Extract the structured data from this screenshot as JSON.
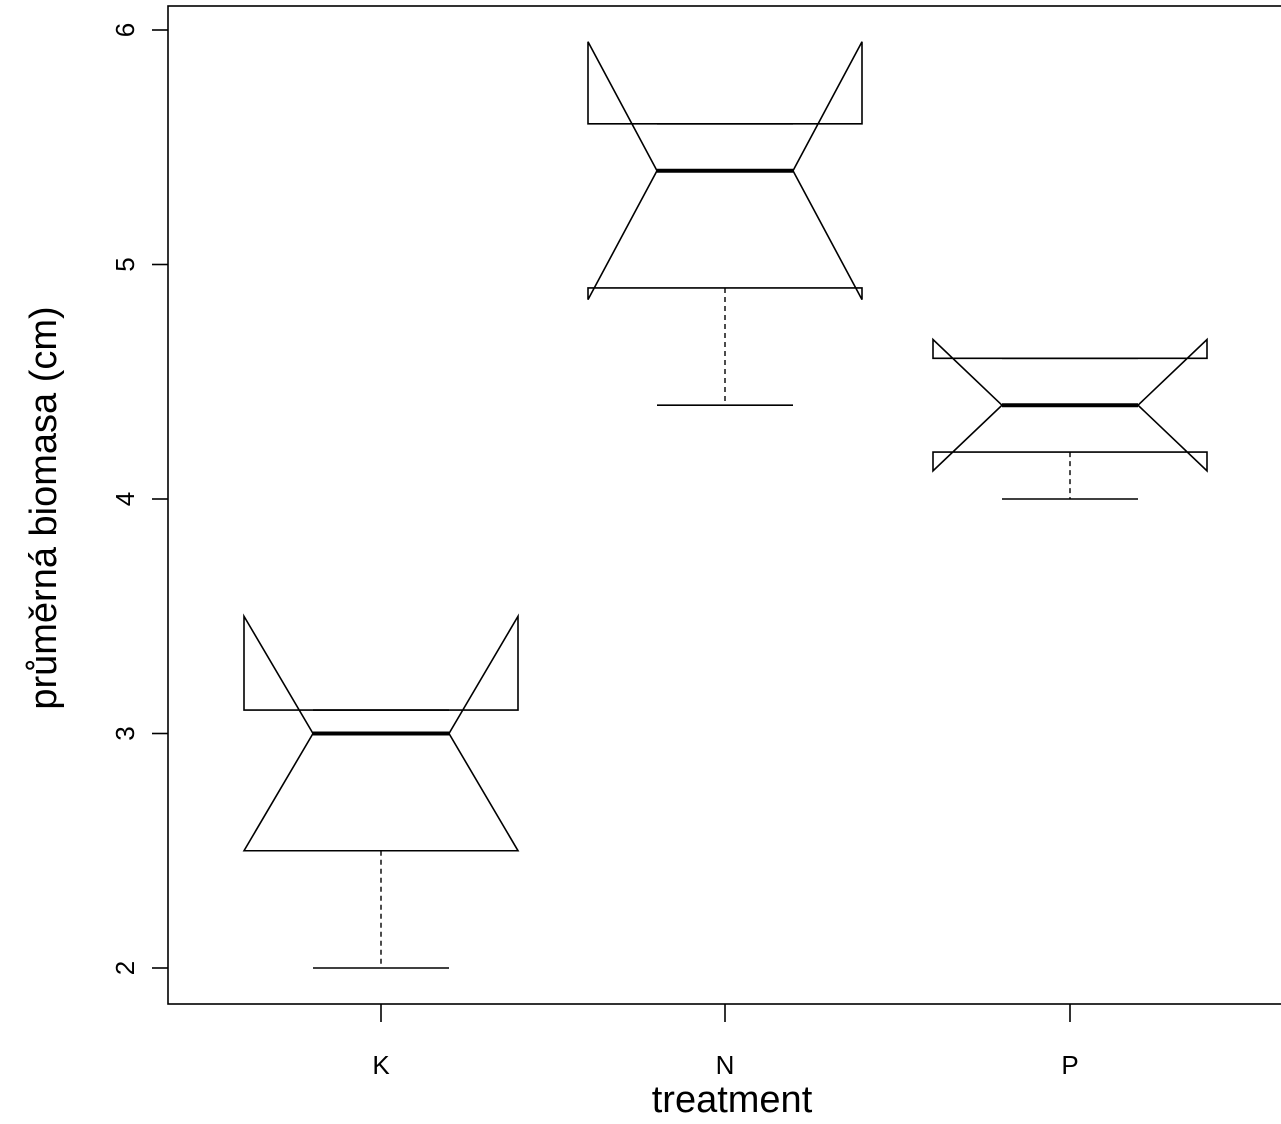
{
  "chart_data": {
    "type": "box",
    "notch": true,
    "xlabel": "treatment",
    "ylabel": "průměrná biomasa (cm)",
    "categories": [
      "K",
      "N",
      "P"
    ],
    "ylim": [
      1.6,
      6.1
    ],
    "yticks": [
      2,
      3,
      4,
      5,
      6
    ],
    "grid": false,
    "boxes": [
      {
        "label": "K",
        "whisker_low": 2.0,
        "q1": 2.5,
        "median": 3.0,
        "q3": 3.1,
        "whisker_high": 3.1,
        "notch_low": 2.5,
        "notch_high": 3.5
      },
      {
        "label": "N",
        "whisker_low": 4.4,
        "q1": 4.9,
        "median": 5.4,
        "q3": 5.6,
        "whisker_high": 5.6,
        "notch_low": 4.85,
        "notch_high": 5.95
      },
      {
        "label": "P",
        "whisker_low": 4.0,
        "q1": 4.2,
        "median": 4.4,
        "q3": 4.6,
        "whisker_high": 4.6,
        "notch_low": 4.12,
        "notch_high": 4.68
      }
    ]
  }
}
